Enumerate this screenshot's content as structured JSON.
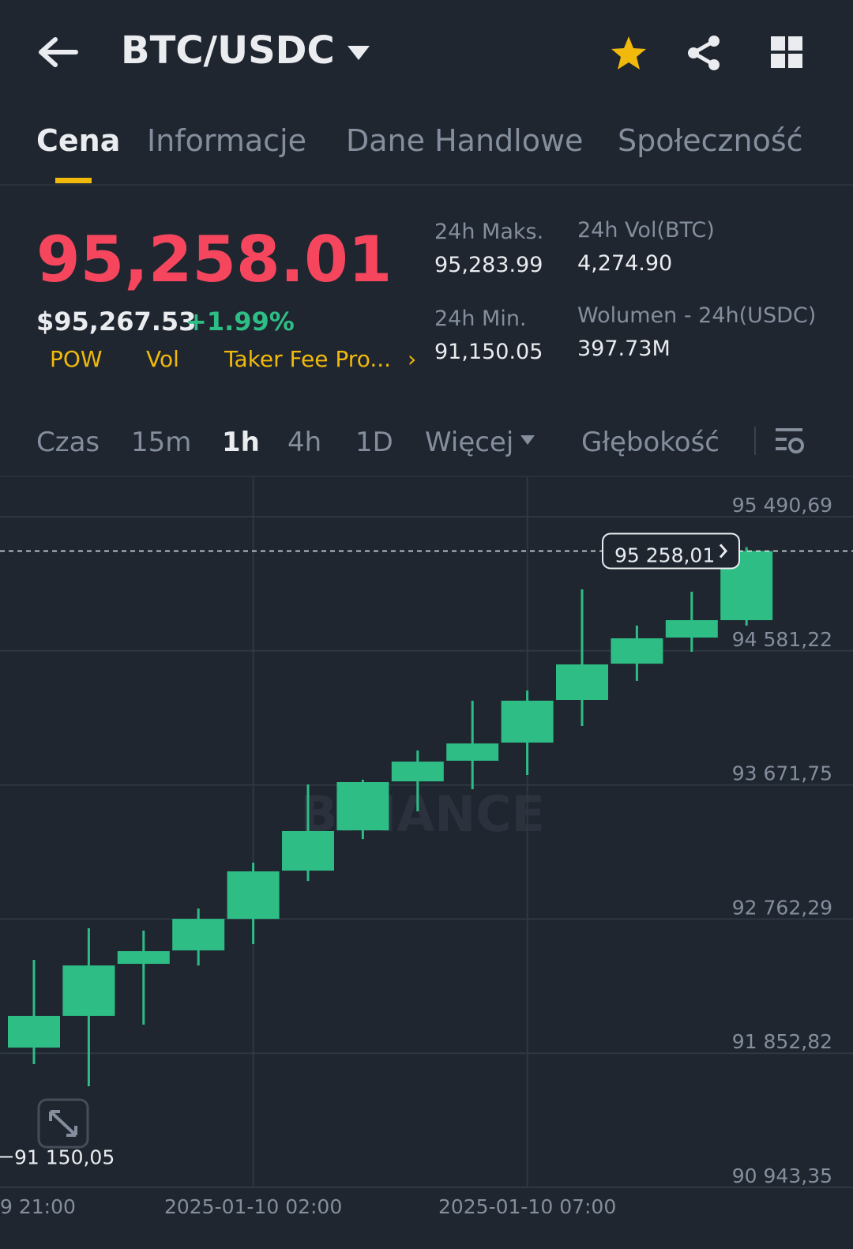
{
  "header": {
    "pair": "BTC/USDC"
  },
  "tabs": {
    "items": [
      "Cena",
      "Informacje",
      "Dane Handlowe",
      "Społeczność"
    ],
    "active": 0
  },
  "price": {
    "last": "95,258.01",
    "usd": "$95,267.53",
    "change": "+1.99%",
    "tags": [
      "POW",
      "Vol",
      "Taker Fee Pro..."
    ]
  },
  "stats": [
    {
      "label": "24h Maks.",
      "value": "95,283.99"
    },
    {
      "label": "24h Min.",
      "value": "91,150.05"
    },
    {
      "label": "24h Vol(BTC)",
      "value": "4,274.90"
    },
    {
      "label": "Wolumen - 24h(USDC)",
      "value": "397.73M"
    }
  ],
  "intervals": {
    "items": [
      "Czas",
      "15m",
      "1h",
      "4h",
      "1D",
      "Więcej"
    ],
    "active": 2,
    "depth": "Głębokość"
  },
  "chart_data": {
    "type": "candlestick",
    "categories": [
      null,
      null,
      null,
      null,
      "2025-01-10 02:00",
      null,
      null,
      null,
      null,
      "2025-01-10 07:00",
      null,
      null,
      null,
      null
    ],
    "x_edge_label": "9 21:00",
    "open": [
      91891,
      92106,
      92459,
      92550,
      92764,
      93091,
      93364,
      93696,
      93836,
      93959,
      94248,
      94494,
      94671,
      94789
    ],
    "high": [
      92486,
      92700,
      92684,
      92834,
      93145,
      93675,
      93707,
      93905,
      94243,
      94312,
      94998,
      94752,
      94982,
      95283.99
    ],
    "low": [
      91779,
      91629,
      92047,
      92448,
      92593,
      93021,
      93305,
      93493,
      93643,
      93739,
      94071,
      94377,
      94575,
      94752
    ],
    "close": [
      92106,
      92448,
      92545,
      92764,
      93086,
      93359,
      93691,
      93830,
      93953,
      94243,
      94489,
      94666,
      94789,
      95258.01
    ],
    "color": "#2ebd85",
    "ylim": [
      90943.35,
      95758.5
    ],
    "yticks": [
      {
        "value": 95490.69,
        "label": "95 490,69"
      },
      {
        "value": 94581.22,
        "label": "94 581,22"
      },
      {
        "value": 93671.75,
        "label": "93 671,75"
      },
      {
        "value": 92762.29,
        "label": "92 762,29"
      },
      {
        "value": 91852.82,
        "label": "91 852,82"
      },
      {
        "value": 90943.35,
        "label": "90 943,35"
      }
    ],
    "last_price": {
      "value": 95258.01,
      "label": "95 258,01"
    },
    "low_marker": {
      "value": 91150.05,
      "label": "91 150,05"
    },
    "watermark": "BINANCE",
    "grid": true
  }
}
